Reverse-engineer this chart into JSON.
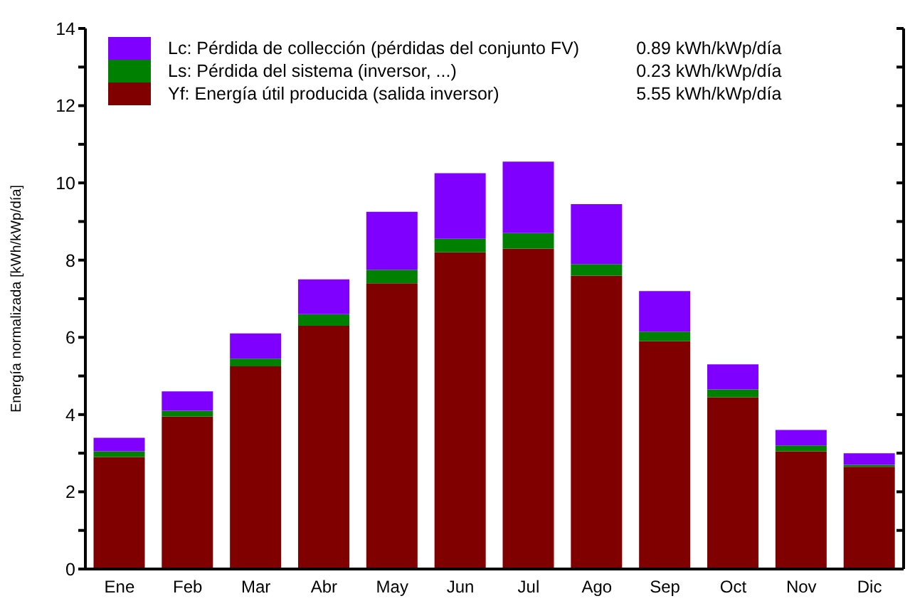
{
  "chart_data": {
    "type": "bar",
    "stacked": true,
    "ylabel": "Energía    normalizada    [kWh/kWp/día]",
    "categories": [
      "Ene",
      "Feb",
      "Mar",
      "Abr",
      "May",
      "Jun",
      "Jul",
      "Ago",
      "Sep",
      "Oct",
      "Nov",
      "Dic"
    ],
    "series": [
      {
        "name": "Yf: Energía útil producida  (salida inversor)",
        "color": "#800000",
        "values": [
          2.9,
          3.95,
          5.25,
          6.3,
          7.4,
          8.2,
          8.3,
          7.6,
          5.9,
          4.45,
          3.05,
          2.65
        ]
      },
      {
        "name": "Ls: Pérdida del sistema  (inversor, ...)",
        "color": "#008000",
        "values": [
          0.15,
          0.15,
          0.2,
          0.3,
          0.35,
          0.35,
          0.4,
          0.3,
          0.25,
          0.2,
          0.15,
          0.05
        ]
      },
      {
        "name": "Lc: Pérdida de collección (pérdidas del conjunto FV)",
        "color": "#8000ff",
        "values": [
          0.35,
          0.5,
          0.65,
          0.9,
          1.5,
          1.7,
          1.85,
          1.55,
          1.05,
          0.65,
          0.4,
          0.3
        ]
      }
    ],
    "annotations": [
      "5.55 kWh/kWp/día",
      "0.23 kWh/kWp/día",
      "0.89 kWh/kWp/día"
    ],
    "ylim": [
      0,
      14
    ],
    "yticks": [
      0,
      {
        "value": 1,
        "label": null
      },
      2,
      {
        "value": 3,
        "label": null
      },
      4,
      {
        "value": 5,
        "label": null
      },
      6,
      {
        "value": 7,
        "label": null
      },
      8,
      {
        "value": 9,
        "label": null
      },
      10,
      {
        "value": 11,
        "label": null
      },
      12,
      {
        "value": 13,
        "label": null
      },
      14
    ],
    "grid": false,
    "legend": "top left"
  }
}
